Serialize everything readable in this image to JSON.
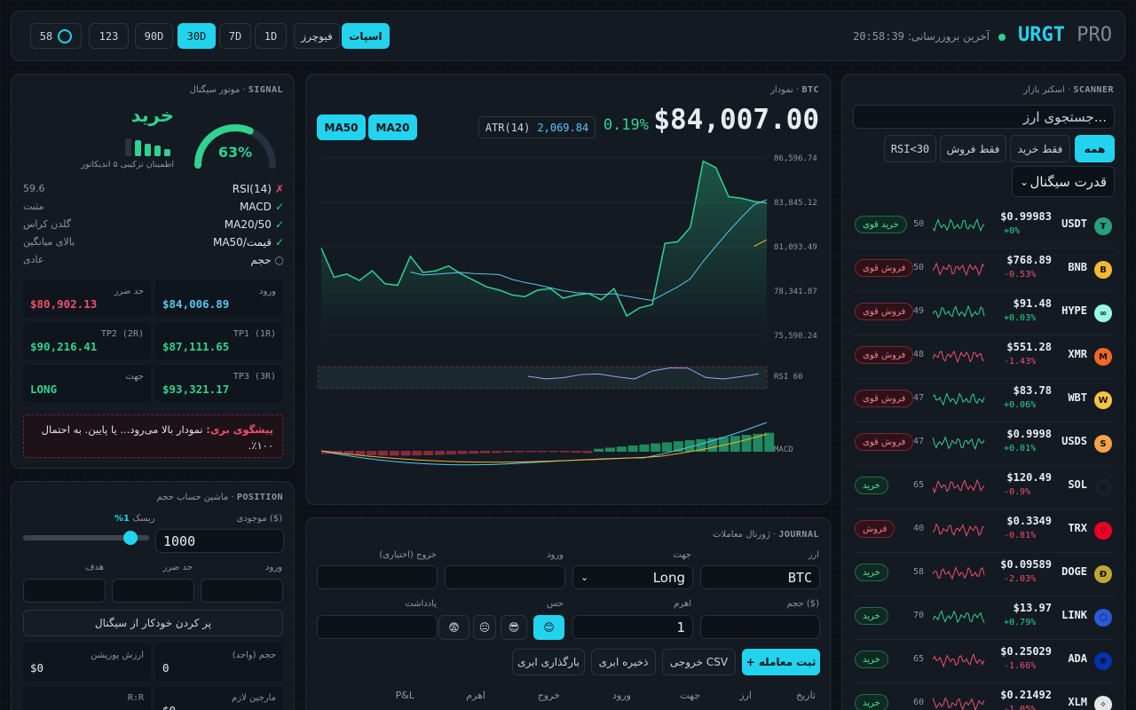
{
  "header": {
    "brand_main": "URGT",
    "brand_suffix": "PRO",
    "last_update_label": "آخرین بروزرسانی:",
    "last_update_time": "20:58:39",
    "market_tabs": [
      "اسپات",
      "فیوچرز"
    ],
    "timeframes": [
      "1D",
      "7D",
      "30D",
      "90D",
      "123"
    ],
    "refresh_count": "58"
  },
  "signal": {
    "title": "موتور سیگنال ·",
    "title_en": "SIGNAL",
    "verdict": "خرید",
    "confidence": "63%",
    "confidence_value": 0.63,
    "confidence_note": "اطمینان ترکیبی ۵ اندیکاتور",
    "indicators": [
      {
        "mark": "✗",
        "name": "RSI(14)",
        "value": "59.6"
      },
      {
        "mark": "✓",
        "name": "MACD",
        "value": "مثبت"
      },
      {
        "mark": "✓",
        "name": "MA20/50",
        "value": "گلدن کراس"
      },
      {
        "mark": "✓",
        "name": "قیمت/MA50",
        "value": "بالای میانگین"
      },
      {
        "mark": "○",
        "name": "حجم",
        "value": "عادی"
      }
    ],
    "levels": {
      "entry_label": "ورود",
      "entry": "$84,006.89",
      "stop_label": "حد ضرر",
      "stop": "$80,902.13",
      "tp1_label": "TP1 (1R)",
      "tp1": "$87,111.65",
      "tp2_label": "TP2 (2R)",
      "tp2": "$90,216.41",
      "tp3_label": "TP3 (3R)",
      "tp3": "$93,321.17",
      "dir_label": "جهت",
      "dir": "LONG"
    },
    "prediction_label": "پیشگوی بری:",
    "prediction_text": "نمودار بالا می‌رود... یا پایین. به احتمال ۱۰۰٪."
  },
  "chart": {
    "title": "نمودار ·",
    "symbol": "BTC",
    "price": "$84,007.00",
    "change": "0.19%",
    "atr_label": "ATR(14)",
    "atr_value": "2,069.84",
    "ma_buttons": [
      "MA20",
      "MA50"
    ],
    "rsi_label": "RSI 60",
    "macd_label": "MACD"
  },
  "chart_data": {
    "type": "line",
    "title": "",
    "y_ticks": [
      "86,596.74",
      "83,845.12",
      "81,093.49",
      "78,341.87",
      "75,590.24"
    ],
    "ylim": [
      75590.24,
      86596.74
    ],
    "series": [
      {
        "values": [
          81000,
          79200,
          79400,
          79000,
          79600,
          78800,
          78700,
          80500,
          79500,
          79600,
          79900,
          79400,
          79000,
          78600,
          78400,
          78100,
          78000,
          78400,
          78500,
          77900,
          78100,
          78200,
          77800,
          78500,
          76800,
          77300,
          77500,
          81300,
          81400,
          82300,
          86400,
          86000,
          84200,
          84100,
          83900,
          83800
        ]
      }
    ]
  },
  "position": {
    "title": "ماشین حساب حجم ·",
    "title_en": "POSITION",
    "balance_label": "موجودی ($)",
    "balance": "1000",
    "risk_label": "ریسک",
    "risk_value": "1%",
    "risk_fraction": 0.01,
    "entry_label": "ورود",
    "stop_label": "حد ضرر",
    "target_label": "هدف",
    "autofill": "پر کردن خودکار از سیگنال",
    "size_label": "حجم (واحد)",
    "size": "0",
    "value_label": "ارزش پوزیشن",
    "value": "$0",
    "margin_label": "مارجین لازم",
    "margin": "$0",
    "rr_label": "R:R"
  },
  "journal": {
    "title": "ژورنال معاملات ·",
    "title_en": "JOURNAL",
    "asset_label": "ارز",
    "asset": "BTC",
    "dir_label": "جهت",
    "dir": "Long",
    "entry_label": "ورود",
    "exit_label": "خروج (اختیاری)",
    "size_label": "حجم ($)",
    "lev_label": "اهرم",
    "lev": "1",
    "mood_label": "حس",
    "note_label": "یادداشت",
    "moods": [
      "😊",
      "😎",
      "😐",
      "😨"
    ],
    "buttons": {
      "submit": "+ ثبت معامله",
      "csv": "خروجی CSV",
      "cloud_save": "ذخیره ابری",
      "cloud_load": "بارگذاری ابری"
    },
    "columns": [
      "تاریخ",
      "ارز",
      "جهت",
      "ورود",
      "خروج",
      "اهرم",
      "P&L"
    ]
  },
  "scanner": {
    "title": "اسکنر بازار ·",
    "title_en": "SCANNER",
    "search_placeholder": "جستجوی ارز...",
    "filters": [
      "همه",
      "فقط خرید",
      "فقط فروش",
      "RSI<30"
    ],
    "sort": "قدرت سیگنال",
    "rows": [
      {
        "sym": "USDT",
        "price": "$0.99983",
        "chg": "+0%",
        "score": "50",
        "badge": "خرید قوی",
        "type": "buy",
        "color": "#26a17b",
        "glyph": "₮",
        "spark": "green"
      },
      {
        "sym": "BNB",
        "price": "$768.89",
        "chg": "-0.53%",
        "score": "50",
        "badge": "فروش قوی",
        "type": "sell",
        "color": "#f3ba2f",
        "glyph": "B",
        "spark": "red"
      },
      {
        "sym": "HYPE",
        "price": "$91.48",
        "chg": "+0.03%",
        "score": "49",
        "badge": "فروش قوی",
        "type": "sell",
        "color": "#97fce4",
        "glyph": "∞",
        "spark": "green"
      },
      {
        "sym": "XMR",
        "price": "$551.28",
        "chg": "-1.43%",
        "score": "48",
        "badge": "فروش قوی",
        "type": "sell",
        "color": "#f26822",
        "glyph": "M",
        "spark": "red"
      },
      {
        "sym": "WBT",
        "price": "$83.78",
        "chg": "+0.06%",
        "score": "47",
        "badge": "فروش قوی",
        "type": "sell",
        "color": "#f5c542",
        "glyph": "W",
        "spark": "green"
      },
      {
        "sym": "USDS",
        "price": "$0.9998",
        "chg": "+0.01%",
        "score": "47",
        "badge": "فروش قوی",
        "type": "sell",
        "color": "#f5a24b",
        "glyph": "S",
        "spark": "green"
      },
      {
        "sym": "SOL",
        "price": "$120.49",
        "chg": "-0.9%",
        "score": "65",
        "badge": "خرید",
        "type": "buy",
        "color": "#1a1f2b",
        "glyph": "≡",
        "spark": "red"
      },
      {
        "sym": "TRX",
        "price": "$0.3349",
        "chg": "-0.81%",
        "score": "40",
        "badge": "فروش",
        "type": "sell",
        "color": "#ef0027",
        "glyph": "▽",
        "spark": "red"
      },
      {
        "sym": "DOGE",
        "price": "$0.09589",
        "chg": "-2.03%",
        "score": "58",
        "badge": "خرید",
        "type": "buy",
        "color": "#c2a633",
        "glyph": "Ð",
        "spark": "red"
      },
      {
        "sym": "LINK",
        "price": "$13.97",
        "chg": "+0.79%",
        "score": "70",
        "badge": "خرید",
        "type": "buy",
        "color": "#2a5ada",
        "glyph": "⬡",
        "spark": "green"
      },
      {
        "sym": "ADA",
        "price": "$0.25029",
        "chg": "-1.66%",
        "score": "65",
        "badge": "خرید",
        "type": "buy",
        "color": "#0033ad",
        "glyph": "✺",
        "spark": "red"
      },
      {
        "sym": "XLM",
        "price": "$0.21492",
        "chg": "-1.05%",
        "score": "60",
        "badge": "خرید",
        "type": "buy",
        "color": "#e6e6e6",
        "glyph": "✧",
        "spark": "red"
      }
    ]
  }
}
